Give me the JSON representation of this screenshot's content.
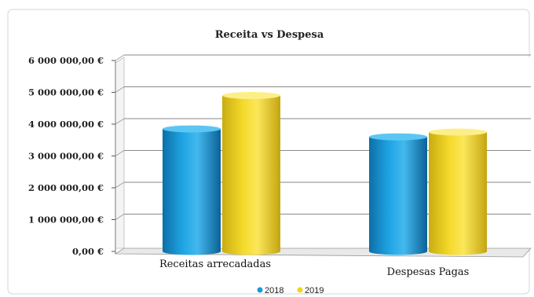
{
  "chart_data": {
    "type": "bar",
    "title": "Receita vs Despesa",
    "categories": [
      "Receitas arrecadadas",
      "Despesas  Pagas"
    ],
    "series": [
      {
        "name": "2018",
        "values": [
          3850000,
          3600000
        ],
        "color": "#1a9ad6"
      },
      {
        "name": "2019",
        "values": [
          4900000,
          3750000
        ],
        "color": "#f2d421"
      }
    ],
    "yticks": [
      "0,00 €",
      "1 000 000,00 €",
      "2 000 000,00 €",
      "3 000 000,00 €",
      "4 000 000,00 €",
      "5 000 000,00 €",
      "6 000 000,00 €"
    ],
    "ylim": [
      0,
      6000000
    ],
    "xlabel": "",
    "ylabel": "",
    "grid": true,
    "legend": "bottom",
    "style": "3d-cylinder"
  }
}
